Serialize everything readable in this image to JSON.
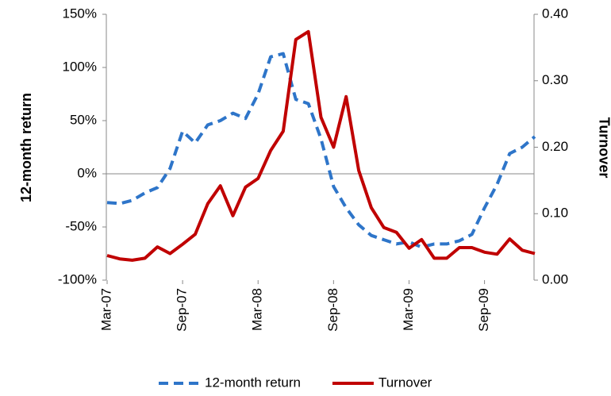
{
  "chart_data": {
    "type": "line",
    "y_label": "12-month return",
    "y2_label": "Turnover",
    "categories": [
      "Mar-07",
      null,
      null,
      null,
      null,
      null,
      "Sep-07",
      null,
      null,
      null,
      null,
      null,
      "Mar-08",
      null,
      null,
      null,
      null,
      null,
      "Sep-08",
      null,
      null,
      null,
      null,
      null,
      "Mar-09",
      null,
      null,
      null,
      null,
      null,
      "Sep-09",
      null,
      null,
      null,
      null
    ],
    "series": [
      {
        "name": "12-month return",
        "color": "#2e75c9",
        "dashed": true,
        "values": [
          -27,
          -28,
          -25,
          -18,
          -13,
          5,
          40,
          29,
          46,
          50,
          57,
          52,
          75,
          110,
          113,
          70,
          66,
          33,
          -12,
          -32,
          -48,
          -58,
          -62,
          -66,
          -64,
          -69,
          -66,
          -66,
          -63,
          -57,
          -32,
          -10,
          19,
          25,
          35
        ]
      },
      {
        "name": "Turnover",
        "color": "#c00000",
        "axis": "y2",
        "values": [
          0.037,
          0.032,
          0.03,
          0.033,
          0.05,
          0.04,
          0.054,
          0.069,
          0.115,
          0.142,
          0.097,
          0.14,
          0.153,
          0.195,
          0.224,
          0.362,
          0.374,
          0.245,
          0.2,
          0.276,
          0.165,
          0.109,
          0.079,
          0.072,
          0.048,
          0.061,
          0.033,
          0.033,
          0.049,
          0.049,
          0.042,
          0.039,
          0.062,
          0.045,
          0.04
        ]
      }
    ],
    "ylim": [
      -100,
      150
    ],
    "yticks": [
      {
        "value": -100,
        "label": "-100%"
      },
      {
        "value": -50,
        "label": "-50%"
      },
      {
        "value": 0,
        "label": "0%"
      },
      {
        "value": 50,
        "label": "50%"
      },
      {
        "value": 100,
        "label": "100%"
      },
      {
        "value": 150,
        "label": "150%"
      }
    ],
    "y2lim": [
      0,
      0.4
    ],
    "y2ticks": [
      {
        "value": 0,
        "label": "0.00"
      },
      {
        "value": 0.1,
        "label": "0.10"
      },
      {
        "value": 0.2,
        "label": "0.20"
      },
      {
        "value": 0.3,
        "label": "0.30"
      },
      {
        "value": 0.4,
        "label": "0.40"
      }
    ],
    "legend": "bottom"
  }
}
